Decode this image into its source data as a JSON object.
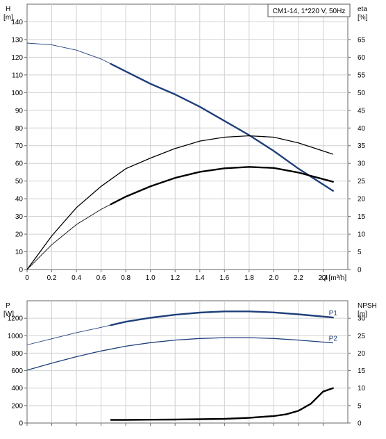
{
  "chart_data": [
    {
      "type": "line",
      "title": "CM1-14, 1*220 V, 50Hz",
      "xlabel": "Q [m³/h]",
      "x_unit_label": "Q [m³/h]",
      "y_left_label": [
        "H",
        "[m]"
      ],
      "y_right_label": [
        "eta",
        "[%]"
      ],
      "xlim": [
        0,
        2.6
      ],
      "ylim_left": [
        0,
        150
      ],
      "ylim_right": [
        0,
        75
      ],
      "x_ticks": [
        0,
        0.2,
        0.4,
        0.6,
        0.8,
        1.0,
        1.2,
        1.4,
        1.6,
        1.8,
        2.0,
        2.2,
        2.4
      ],
      "x_tick_labels": [
        "0",
        "0.2",
        "0.4",
        "0.6",
        "0.8",
        "1.0",
        "1.2",
        "1.4",
        "1.6",
        "1.8",
        "2.0",
        "2.2",
        "2.4"
      ],
      "y_left_ticks": [
        0,
        10,
        20,
        30,
        40,
        50,
        60,
        70,
        80,
        90,
        100,
        110,
        120,
        130,
        140
      ],
      "y_right_ticks": [
        0,
        5,
        10,
        15,
        20,
        25,
        30,
        35,
        40,
        45,
        50,
        55,
        60,
        65
      ],
      "grid": true,
      "series": [
        {
          "axis": "left",
          "color": "#1f3f7a",
          "thin_until": 0.68,
          "x": [
            0,
            0.2,
            0.4,
            0.6,
            0.8,
            1.0,
            1.2,
            1.4,
            1.6,
            1.8,
            2.0,
            2.2,
            2.48
          ],
          "values": [
            128,
            127,
            124,
            119,
            112,
            105,
            99,
            92,
            84,
            76,
            67,
            57,
            44.5
          ]
        },
        {
          "axis": "right",
          "color": "#000000",
          "thin_until": 2.48,
          "x": [
            0,
            0.2,
            0.4,
            0.6,
            0.8,
            1.0,
            1.2,
            1.4,
            1.6,
            1.8,
            2.0,
            2.2,
            2.48
          ],
          "values": [
            0,
            9.5,
            17.5,
            23.5,
            28.5,
            31.5,
            34.2,
            36.3,
            37.4,
            37.8,
            37.4,
            35.8,
            32.6
          ]
        },
        {
          "axis": "right",
          "color": "#000000",
          "thin_until": 0.68,
          "x": [
            0,
            0.2,
            0.4,
            0.6,
            0.8,
            1.0,
            1.2,
            1.4,
            1.6,
            1.8,
            2.0,
            2.2,
            2.48
          ],
          "values": [
            0,
            7,
            12.7,
            17,
            20.6,
            23.5,
            25.9,
            27.6,
            28.6,
            29.0,
            28.7,
            27.4,
            24.8
          ]
        }
      ]
    },
    {
      "type": "line",
      "xlim": [
        0,
        2.6
      ],
      "y_left_label": [
        "P",
        "[W]"
      ],
      "y_right_label": [
        "NPSH",
        "[m]"
      ],
      "ylim_left": [
        0,
        1400
      ],
      "ylim_right": [
        0,
        35
      ],
      "y_left_ticks": [
        0,
        200,
        400,
        600,
        800,
        1000,
        1200
      ],
      "y_right_ticks": [
        0,
        5,
        10,
        15,
        20,
        25,
        30
      ],
      "grid": true,
      "series": [
        {
          "name": "P1",
          "axis": "left",
          "color": "#1f3f7a",
          "thin_until": 0.68,
          "x": [
            0,
            0.2,
            0.4,
            0.6,
            0.8,
            1.0,
            1.2,
            1.4,
            1.6,
            1.8,
            2.0,
            2.2,
            2.48
          ],
          "values": [
            895,
            965,
            1035,
            1095,
            1160,
            1205,
            1240,
            1265,
            1278,
            1278,
            1266,
            1245,
            1208
          ]
        },
        {
          "name": "P2",
          "axis": "left",
          "color": "#1f3f7a",
          "thin_until": 2.48,
          "x": [
            0,
            0.2,
            0.4,
            0.6,
            0.8,
            1.0,
            1.2,
            1.4,
            1.6,
            1.8,
            2.0,
            2.2,
            2.48
          ],
          "values": [
            605,
            685,
            760,
            825,
            880,
            920,
            950,
            968,
            978,
            978,
            968,
            950,
            918
          ]
        },
        {
          "axis": "right",
          "color": "#000000",
          "thin_until": 0.68,
          "x": [
            0.68,
            0.8,
            1.0,
            1.2,
            1.4,
            1.6,
            1.8,
            2.0,
            2.1,
            2.2,
            2.3,
            2.4,
            2.48
          ],
          "values": [
            0.9,
            0.9,
            0.95,
            1.0,
            1.1,
            1.2,
            1.5,
            2.0,
            2.5,
            3.5,
            5.5,
            9.0,
            10.0
          ]
        }
      ]
    }
  ]
}
